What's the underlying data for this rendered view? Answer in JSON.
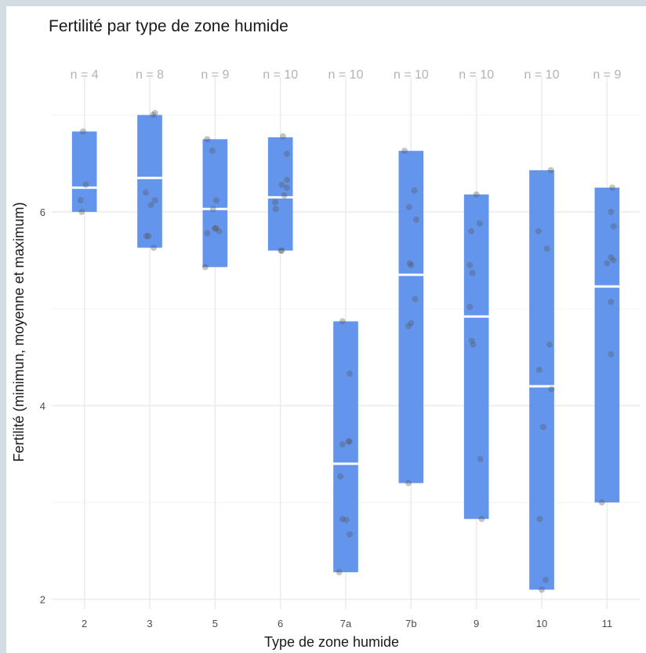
{
  "chart_data": {
    "type": "bar",
    "title": "Fertilité par type de zone humide",
    "xlabel": "Type de zone humide",
    "ylabel": "Fertilité (minimun, moyenne et maximum)",
    "categories": [
      "2",
      "3",
      "5",
      "6",
      "7a",
      "7b",
      "9",
      "10",
      "11"
    ],
    "counts": [
      "n = 4",
      "n = 8",
      "n = 9",
      "n = 10",
      "n = 10",
      "n = 10",
      "n = 10",
      "n = 10",
      "n = 9"
    ],
    "ylim": [
      1.9,
      7.15
    ],
    "yticks": [
      2,
      4,
      6
    ],
    "grid": true,
    "colors": {
      "bar": "#6495ED",
      "mean": "#ffffff",
      "point": "#555555"
    },
    "series": [
      {
        "name": "minimum",
        "values": [
          6.0,
          5.63,
          5.43,
          5.6,
          2.28,
          3.2,
          2.83,
          2.1,
          3.0
        ]
      },
      {
        "name": "moyenne",
        "values": [
          6.25,
          6.35,
          6.03,
          6.15,
          3.4,
          5.35,
          4.92,
          4.2,
          5.23
        ]
      },
      {
        "name": "maximum",
        "values": [
          6.83,
          7.0,
          6.75,
          6.77,
          4.87,
          6.63,
          6.18,
          6.43,
          6.25
        ]
      }
    ],
    "points": [
      [
        [
          -0.02,
          6.83
        ],
        [
          -0.06,
          6.12
        ],
        [
          -0.04,
          6.0
        ],
        [
          0.02,
          6.28
        ]
      ],
      [
        [
          0.08,
          7.02
        ],
        [
          0.05,
          7.0
        ],
        [
          -0.06,
          6.2
        ],
        [
          0.08,
          6.12
        ],
        [
          0.02,
          6.07
        ],
        [
          -0.02,
          5.75
        ],
        [
          0.06,
          5.63
        ],
        [
          -0.05,
          5.75
        ]
      ],
      [
        [
          -0.12,
          6.75
        ],
        [
          -0.04,
          6.63
        ],
        [
          0.02,
          6.12
        ],
        [
          -0.03,
          6.03
        ],
        [
          0.06,
          5.8
        ],
        [
          0.0,
          5.83
        ],
        [
          -0.12,
          5.78
        ],
        [
          -0.15,
          5.43
        ],
        [
          0.01,
          5.83
        ]
      ],
      [
        [
          0.04,
          6.78
        ],
        [
          0.1,
          6.6
        ],
        [
          0.1,
          6.33
        ],
        [
          0.1,
          6.25
        ],
        [
          0.02,
          6.28
        ],
        [
          0.06,
          6.17
        ],
        [
          -0.08,
          6.1
        ],
        [
          -0.07,
          6.03
        ],
        [
          0.02,
          5.6
        ],
        [
          0.01,
          5.6
        ]
      ],
      [
        [
          -0.05,
          4.87
        ],
        [
          0.06,
          4.33
        ],
        [
          -0.05,
          3.6
        ],
        [
          0.04,
          3.63
        ],
        [
          0.06,
          3.63
        ],
        [
          -0.08,
          3.27
        ],
        [
          -0.05,
          2.83
        ],
        [
          0.01,
          2.82
        ],
        [
          0.06,
          2.67
        ],
        [
          -0.1,
          2.28
        ]
      ],
      [
        [
          -0.1,
          6.63
        ],
        [
          0.05,
          6.22
        ],
        [
          -0.03,
          6.05
        ],
        [
          0.08,
          5.92
        ],
        [
          -0.02,
          5.47
        ],
        [
          0.0,
          5.45
        ],
        [
          0.06,
          5.1
        ],
        [
          0.0,
          4.85
        ],
        [
          -0.04,
          4.82
        ],
        [
          -0.04,
          3.2
        ]
      ],
      [
        [
          0.0,
          6.18
        ],
        [
          0.05,
          5.88
        ],
        [
          -0.08,
          5.8
        ],
        [
          -0.1,
          5.45
        ],
        [
          -0.06,
          5.37
        ],
        [
          -0.1,
          5.02
        ],
        [
          -0.07,
          4.67
        ],
        [
          -0.05,
          4.63
        ],
        [
          0.06,
          3.45
        ],
        [
          0.08,
          2.83
        ]
      ],
      [
        [
          0.14,
          6.43
        ],
        [
          -0.05,
          5.8
        ],
        [
          0.08,
          5.62
        ],
        [
          0.12,
          4.63
        ],
        [
          0.15,
          4.17
        ],
        [
          -0.04,
          4.37
        ],
        [
          0.02,
          3.78
        ],
        [
          -0.03,
          2.83
        ],
        [
          0.06,
          2.2
        ],
        [
          0.0,
          2.1
        ]
      ],
      [
        [
          0.08,
          6.25
        ],
        [
          0.06,
          6.0
        ],
        [
          0.1,
          5.85
        ],
        [
          0.06,
          5.53
        ],
        [
          0.1,
          5.5
        ],
        [
          0.0,
          5.47
        ],
        [
          0.06,
          5.07
        ],
        [
          0.06,
          4.53
        ],
        [
          -0.08,
          3.0
        ]
      ]
    ]
  }
}
